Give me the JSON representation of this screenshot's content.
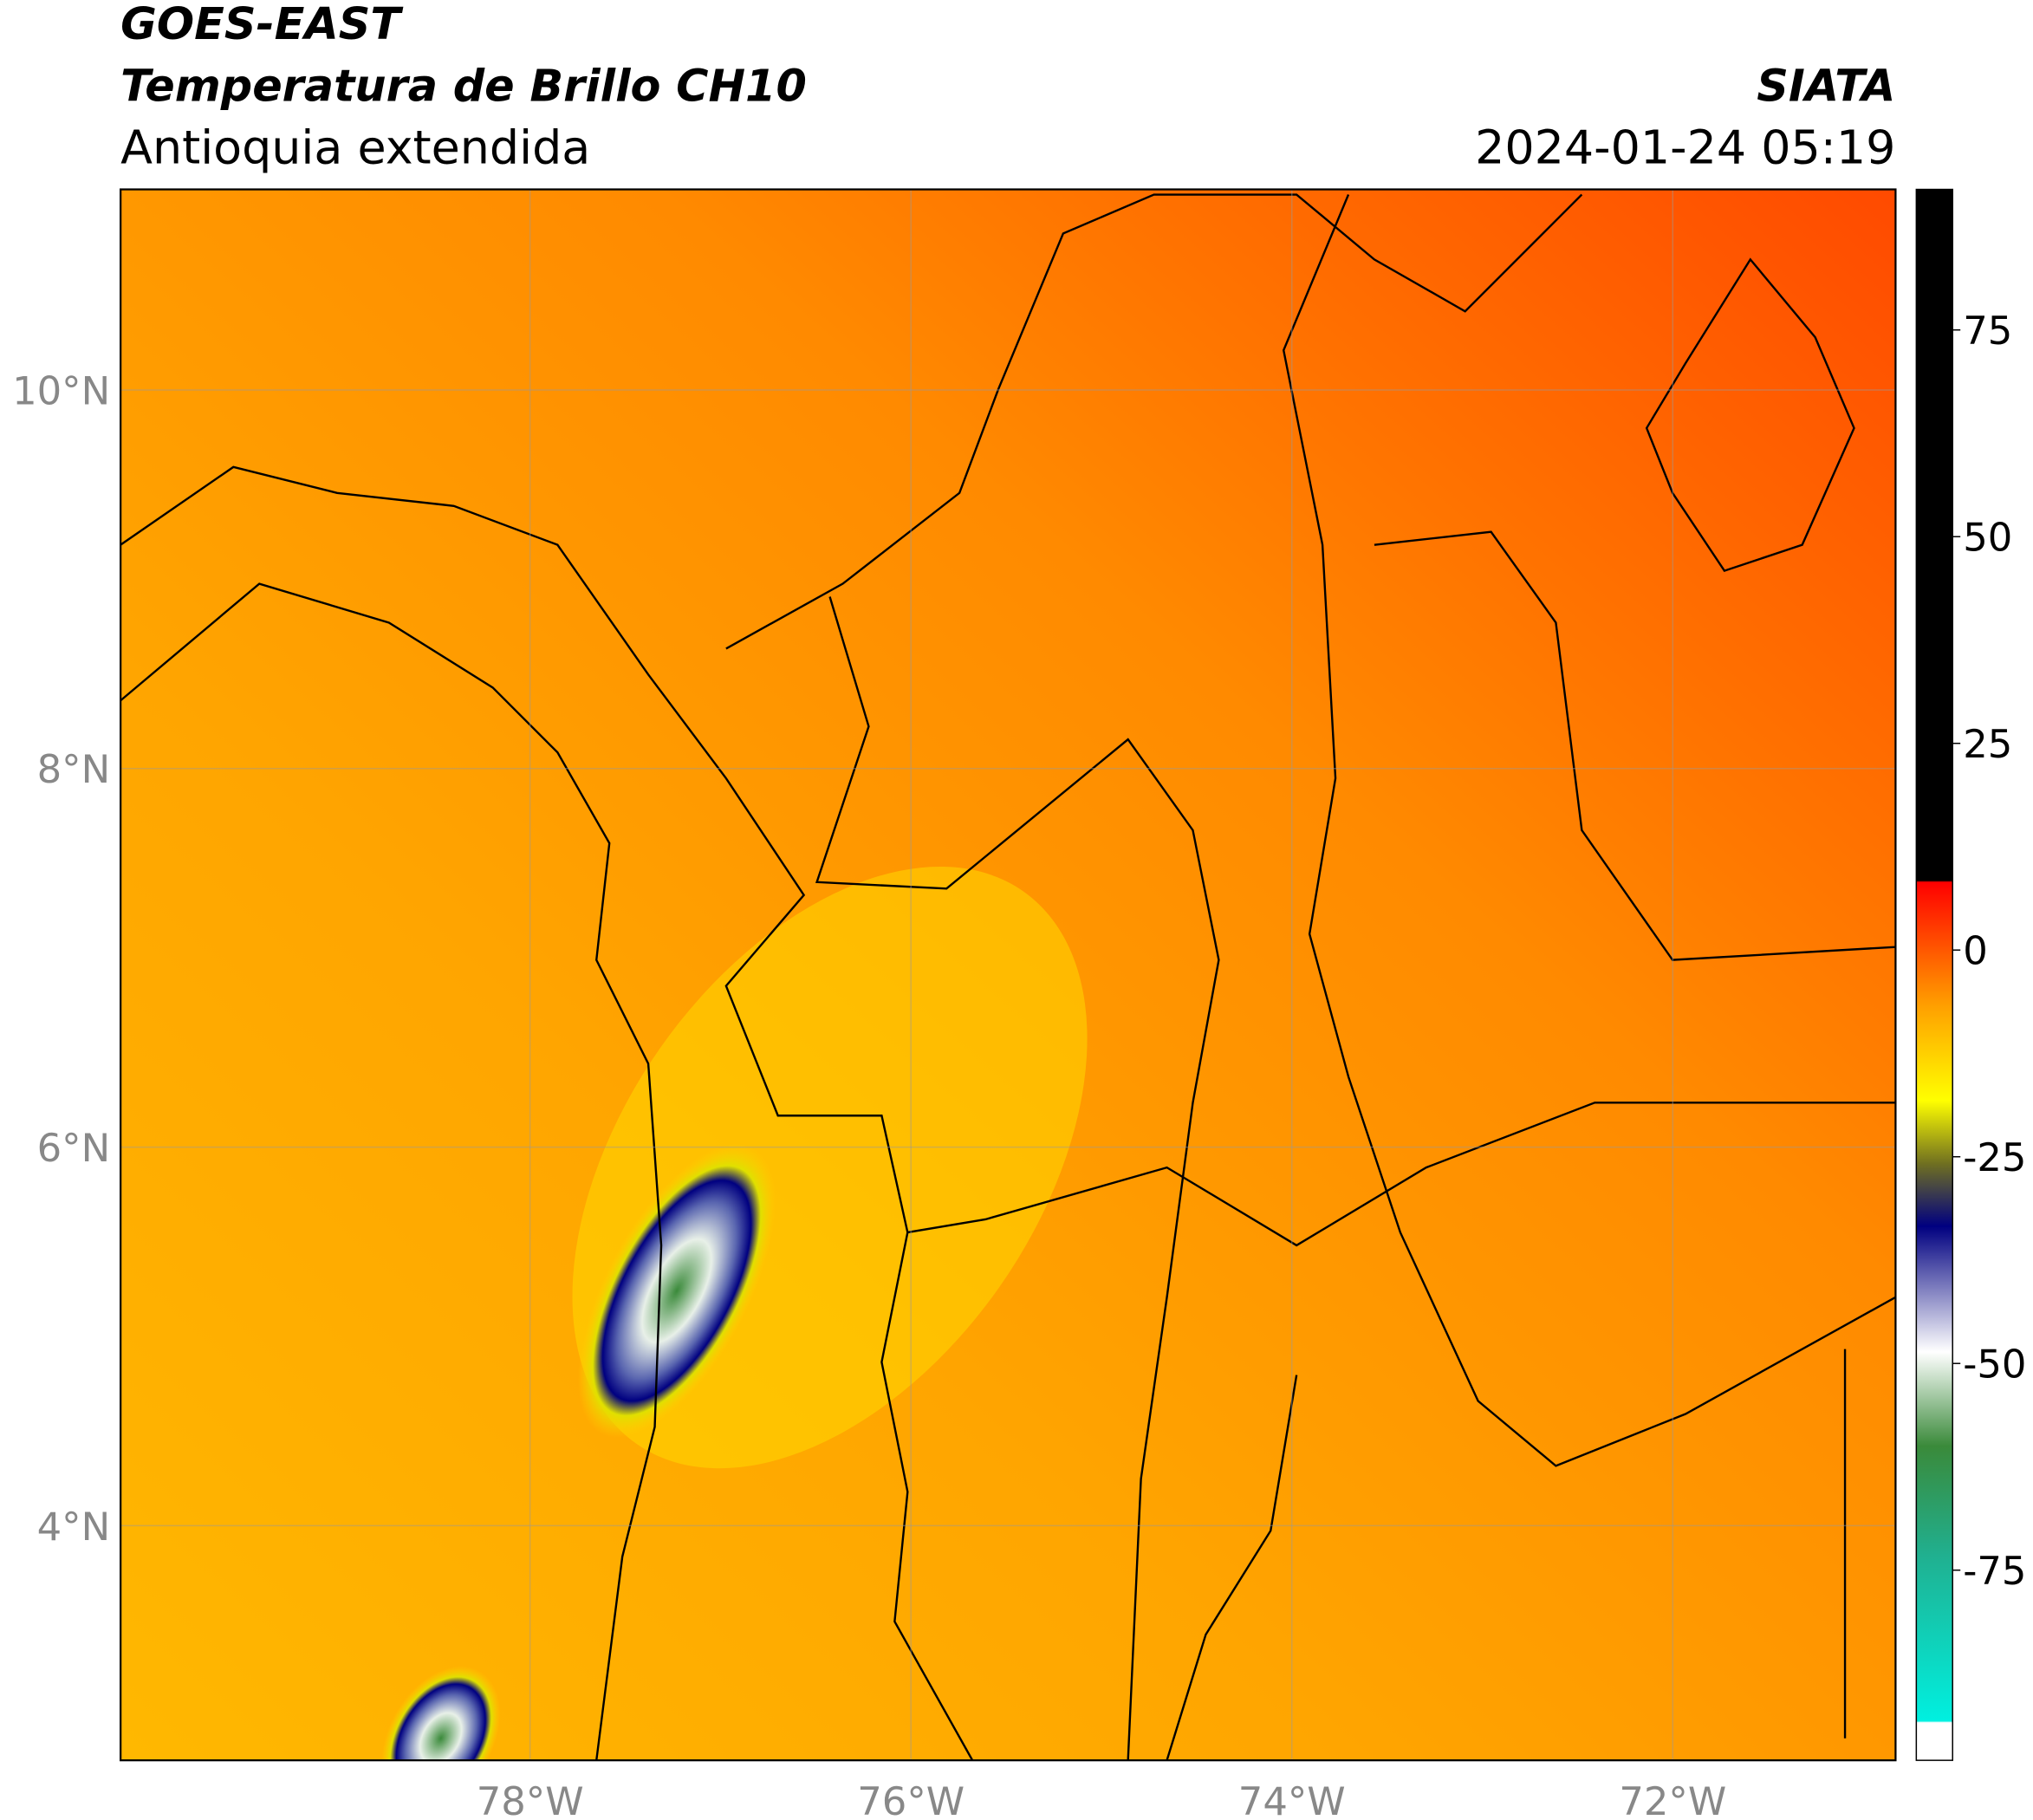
{
  "header": {
    "title": "GOES-EAST",
    "subtitle": "Temperatura de Brillo CH10",
    "region": "Antioquia extendida",
    "source": "SIATA",
    "timestamp": "2024-01-24 05:19"
  },
  "map": {
    "xlim": [
      -80.15,
      -70.83
    ],
    "ylim": [
      2.76,
      11.06
    ],
    "xticks": [
      {
        "value": -78,
        "label": "78°W"
      },
      {
        "value": -76,
        "label": "76°W"
      },
      {
        "value": -74,
        "label": "74°W"
      },
      {
        "value": -72,
        "label": "72°W"
      }
    ],
    "yticks": [
      {
        "value": 10,
        "label": "10°N"
      },
      {
        "value": 8,
        "label": "8°N"
      },
      {
        "value": 6,
        "label": "6°N"
      },
      {
        "value": 4,
        "label": "4°N"
      }
    ]
  },
  "colorbar": {
    "lim": [
      -98,
      92
    ],
    "ticks": [
      75,
      50,
      25,
      0,
      -25,
      -50,
      -75
    ]
  }
}
